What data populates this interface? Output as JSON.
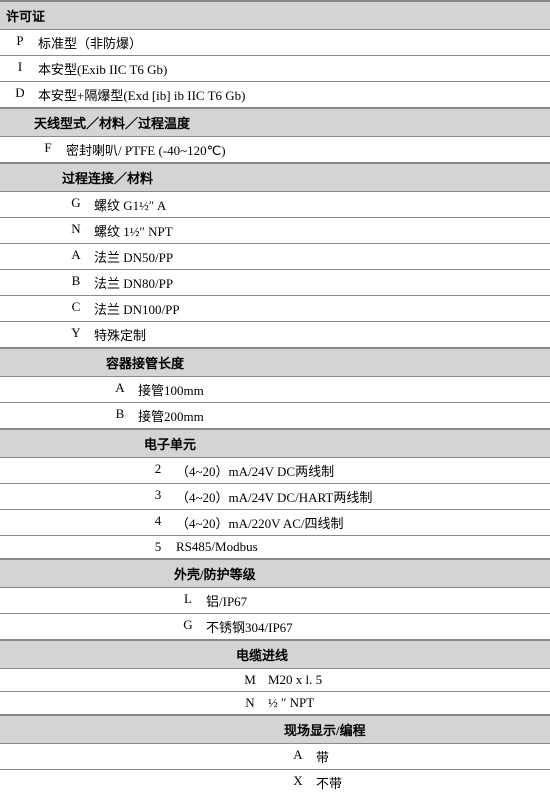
{
  "colors": {
    "header_bg": "#d4d4d4",
    "border": "#888888",
    "text": "#000000",
    "bg": "#ffffff"
  },
  "typography": {
    "font_family": "SimSun",
    "font_size_pt": 10,
    "header_weight": "bold"
  },
  "sections": [
    {
      "title": "许可证",
      "indent": 0,
      "items": [
        {
          "code": "P",
          "desc": "标准型（非防爆）"
        },
        {
          "code": "I",
          "desc": "本安型(Exib IIC T6 Gb)"
        },
        {
          "code": "D",
          "desc": "本安型+隔爆型(Exd [ib] ib  IIC T6 Gb)"
        }
      ]
    },
    {
      "title": "天线型式／材料／过程温度",
      "indent": 1,
      "items": [
        {
          "code": "F",
          "desc": "密封喇叭/ PTFE (-40~120℃)"
        }
      ]
    },
    {
      "title": "过程连接／材料",
      "indent": 2,
      "items": [
        {
          "code": "G",
          "desc": "螺纹 G1½″ A"
        },
        {
          "code": "N",
          "desc": "螺纹 1½″ NPT"
        },
        {
          "code": "A",
          "desc": "法兰 DN50/PP"
        },
        {
          "code": "B",
          "desc": "法兰 DN80/PP"
        },
        {
          "code": "C",
          "desc": "法兰 DN100/PP"
        },
        {
          "code": "Y",
          "desc": "特殊定制"
        }
      ]
    },
    {
      "title": "容器接管长度",
      "indent": 3,
      "items": [
        {
          "code": "A",
          "desc": "接管100mm"
        },
        {
          "code": "B",
          "desc": "接管200mm"
        }
      ]
    },
    {
      "title": "电子单元",
      "indent": 4,
      "items": [
        {
          "code": "2",
          "desc": "（4~20）mA/24V DC两线制"
        },
        {
          "code": "3",
          "desc": "（4~20）mA/24V DC/HART两线制"
        },
        {
          "code": "4",
          "desc": "（4~20）mA/220V AC/四线制"
        },
        {
          "code": "5",
          "desc": "RS485/Modbus"
        }
      ]
    },
    {
      "title": "外壳/防护等级",
      "indent": 5,
      "items": [
        {
          "code": "L",
          "desc": "铝/IP67"
        },
        {
          "code": "G",
          "desc": "不锈钢304/IP67"
        }
      ]
    },
    {
      "title": "电缆进线",
      "indent": 6,
      "items": [
        {
          "code": "M",
          "desc": "M20 x l. 5"
        },
        {
          "code": "N",
          "desc": "½ ″ NPT"
        }
      ]
    },
    {
      "title": "现场显示/编程",
      "indent": 7,
      "items": [
        {
          "code": "A",
          "desc": "带"
        },
        {
          "code": "X",
          "desc": "不带"
        }
      ]
    }
  ]
}
